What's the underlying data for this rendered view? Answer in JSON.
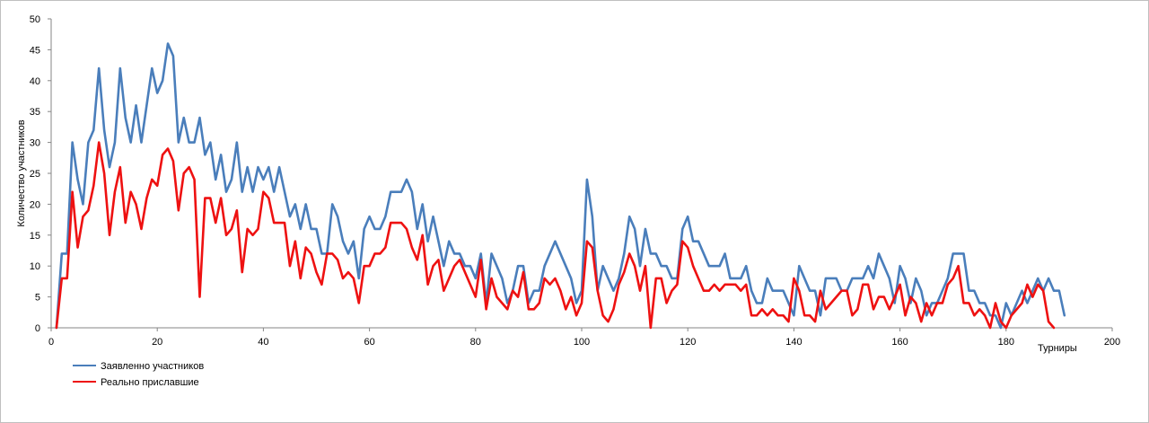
{
  "chart_data": {
    "type": "line",
    "xlabel": "Турниры",
    "ylabel": "Количество участников",
    "xlim": [
      0,
      200
    ],
    "ylim": [
      0,
      50
    ],
    "x_ticks": [
      "0",
      "20",
      "40",
      "60",
      "80",
      "100",
      "120",
      "140",
      "160",
      "180",
      "200"
    ],
    "y_ticks": [
      "0",
      "5",
      "10",
      "15",
      "20",
      "25",
      "30",
      "35",
      "40",
      "45",
      "50"
    ],
    "grid": false,
    "legend_position": "bottom-left",
    "series": [
      {
        "name": "Заявленно участников",
        "color": "#4a7ebb",
        "values": [
          0,
          12,
          12,
          30,
          24,
          20,
          30,
          32,
          42,
          32,
          26,
          30,
          42,
          34,
          30,
          36,
          30,
          36,
          42,
          38,
          40,
          46,
          44,
          30,
          34,
          30,
          30,
          34,
          28,
          30,
          24,
          28,
          22,
          24,
          30,
          22,
          26,
          22,
          26,
          24,
          26,
          22,
          26,
          22,
          18,
          20,
          16,
          20,
          16,
          16,
          12,
          12,
          20,
          18,
          14,
          12,
          14,
          8,
          16,
          18,
          16,
          16,
          18,
          22,
          22,
          22,
          24,
          22,
          16,
          20,
          14,
          18,
          14,
          10,
          14,
          12,
          12,
          10,
          10,
          8,
          12,
          4,
          12,
          10,
          8,
          4,
          6,
          10,
          10,
          4,
          6,
          6,
          10,
          12,
          14,
          12,
          10,
          8,
          4,
          6,
          24,
          18,
          6,
          10,
          8,
          6,
          8,
          12,
          18,
          16,
          10,
          16,
          12,
          12,
          10,
          10,
          8,
          8,
          16,
          18,
          14,
          14,
          12,
          10,
          10,
          10,
          12,
          8,
          8,
          8,
          10,
          6,
          4,
          4,
          8,
          6,
          6,
          6,
          4,
          2,
          10,
          8,
          6,
          6,
          2,
          8,
          8,
          8,
          6,
          6,
          8,
          8,
          8,
          10,
          8,
          12,
          10,
          8,
          4,
          10,
          8,
          4,
          8,
          6,
          2,
          4,
          4,
          6,
          8,
          12,
          12,
          12,
          6,
          6,
          4,
          4,
          2,
          2,
          0,
          4,
          2,
          4,
          6,
          4,
          6,
          8,
          6,
          8,
          6,
          6,
          2
        ]
      },
      {
        "name": "Реально приславшие",
        "color": "#ee1111",
        "values": [
          0,
          8,
          8,
          22,
          13,
          18,
          19,
          23,
          30,
          25,
          15,
          22,
          26,
          17,
          22,
          20,
          16,
          21,
          24,
          23,
          28,
          29,
          27,
          19,
          25,
          26,
          24,
          5,
          21,
          21,
          17,
          21,
          15,
          16,
          19,
          9,
          16,
          15,
          16,
          22,
          21,
          17,
          17,
          17,
          10,
          14,
          8,
          13,
          12,
          9,
          7,
          12,
          12,
          11,
          8,
          9,
          8,
          4,
          10,
          10,
          12,
          12,
          13,
          17,
          17,
          17,
          16,
          13,
          11,
          15,
          7,
          10,
          11,
          6,
          8,
          10,
          11,
          9,
          7,
          5,
          11,
          3,
          8,
          5,
          4,
          3,
          6,
          5,
          9,
          3,
          3,
          4,
          8,
          7,
          8,
          6,
          3,
          5,
          2,
          4,
          14,
          13,
          6,
          2,
          1,
          3,
          7,
          9,
          12,
          10,
          6,
          10,
          0,
          8,
          8,
          4,
          6,
          7,
          14,
          13,
          10,
          8,
          6,
          6,
          7,
          6,
          7,
          7,
          7,
          6,
          7,
          2,
          2,
          3,
          2,
          3,
          2,
          2,
          1,
          8,
          6,
          2,
          2,
          1,
          6,
          3,
          4,
          5,
          6,
          6,
          2,
          3,
          7,
          7,
          3,
          5,
          5,
          3,
          5,
          7,
          2,
          5,
          4,
          1,
          4,
          2,
          4,
          4,
          7,
          8,
          10,
          4,
          4,
          2,
          3,
          2,
          0,
          4,
          1,
          0,
          2,
          3,
          4,
          7,
          5,
          7,
          6,
          1,
          0
        ]
      }
    ]
  }
}
